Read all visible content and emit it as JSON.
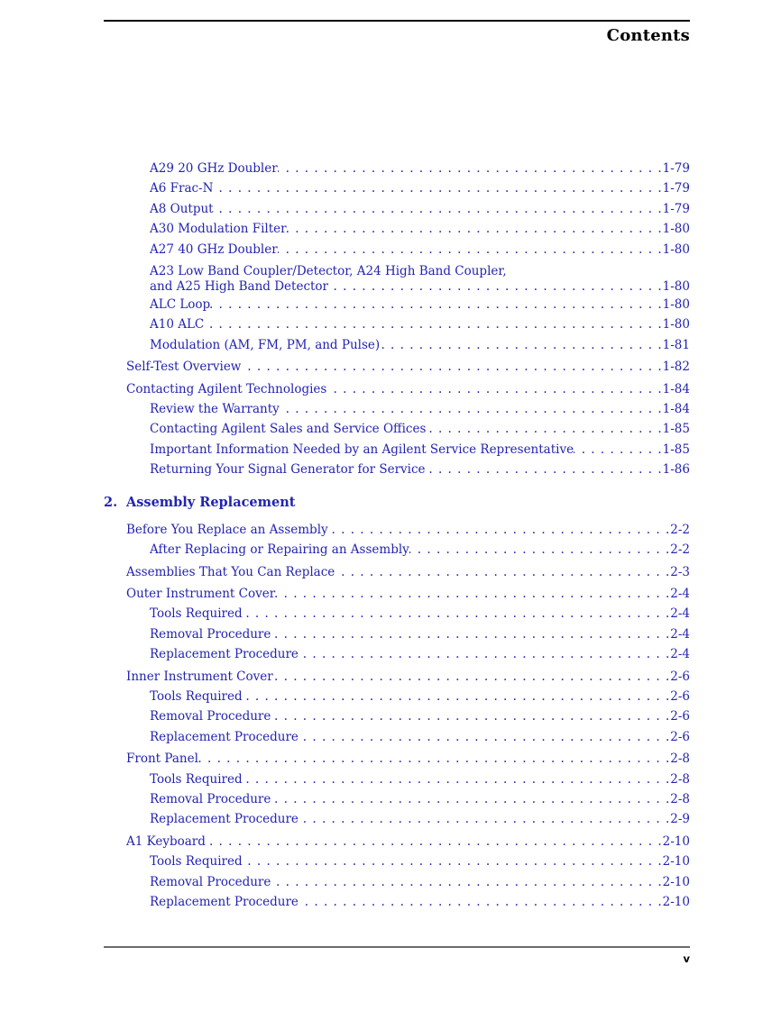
{
  "page": {
    "header_title": "Contents",
    "footer_page_number": "v"
  },
  "colors": {
    "link_blue": "#2323b2",
    "header_rule": "#000000",
    "footer_rule": "#6b6b6b"
  },
  "toc": {
    "chapter1_entries": [
      {
        "level": 2,
        "label": "A29 20 GHz Doubler",
        "page": "1-79"
      },
      {
        "level": 2,
        "label": "A6 Frac-N",
        "page": "1-79"
      },
      {
        "level": 2,
        "label": "A8 Output",
        "page": "1-79"
      },
      {
        "level": 2,
        "label": "A30 Modulation Filter",
        "page": "1-80"
      },
      {
        "level": 2,
        "label": "A27 40 GHz Doubler",
        "page": "1-80"
      },
      {
        "level": 2,
        "label_top": "A23 Low Band Coupler/Detector, A24 High Band Coupler,",
        "label": "and A25 High Band Detector",
        "page": "1-80"
      },
      {
        "level": 2,
        "label": "ALC Loop",
        "page": "1-80"
      },
      {
        "level": 2,
        "label": "A10 ALC",
        "page": "1-80"
      },
      {
        "level": 2,
        "label": "Modulation (AM, FM, PM, and Pulse)",
        "page": "1-81"
      },
      {
        "level": 1,
        "label": "Self-Test Overview",
        "page": "1-82"
      },
      {
        "level": 1,
        "label": "Contacting Agilent Technologies",
        "page": "1-84"
      },
      {
        "level": 2,
        "label": "Review the Warranty",
        "page": "1-84"
      },
      {
        "level": 2,
        "label": "Contacting Agilent Sales and Service Offices",
        "page": "1-85"
      },
      {
        "level": 2,
        "label": "Important Information Needed by an Agilent Service Representative",
        "page": "1-85"
      },
      {
        "level": 2,
        "label": "Returning Your Signal Generator for Service",
        "page": "1-86"
      }
    ],
    "chapter2_heading": {
      "number": "2.",
      "title": "Assembly Replacement"
    },
    "chapter2_entries": [
      {
        "level": 1,
        "label": "Before You Replace an Assembly",
        "page": "2-2"
      },
      {
        "level": 2,
        "label": "After Replacing or Repairing an Assembly",
        "page": "2-2"
      },
      {
        "level": 1,
        "label": "Assemblies That You Can Replace",
        "page": "2-3"
      },
      {
        "level": 1,
        "label": "Outer Instrument Cover",
        "page": "2-4"
      },
      {
        "level": 2,
        "label": "Tools Required",
        "page": "2-4"
      },
      {
        "level": 2,
        "label": "Removal Procedure",
        "page": "2-4"
      },
      {
        "level": 2,
        "label": "Replacement Procedure",
        "page": "2-4"
      },
      {
        "level": 1,
        "label": "Inner Instrument Cover",
        "page": "2-6"
      },
      {
        "level": 2,
        "label": "Tools Required",
        "page": "2-6"
      },
      {
        "level": 2,
        "label": "Removal Procedure",
        "page": "2-6"
      },
      {
        "level": 2,
        "label": "Replacement Procedure",
        "page": "2-6"
      },
      {
        "level": 1,
        "label": "Front Panel",
        "page": "2-8"
      },
      {
        "level": 2,
        "label": "Tools Required",
        "page": "2-8"
      },
      {
        "level": 2,
        "label": "Removal Procedure",
        "page": "2-8"
      },
      {
        "level": 2,
        "label": "Replacement Procedure",
        "page": "2-9"
      },
      {
        "level": 1,
        "label": "A1 Keyboard",
        "page": "2-10"
      },
      {
        "level": 2,
        "label": "Tools Required",
        "page": "2-10"
      },
      {
        "level": 2,
        "label": "Removal Procedure",
        "page": "2-10"
      },
      {
        "level": 2,
        "label": "Replacement Procedure",
        "page": "2-10"
      }
    ]
  }
}
